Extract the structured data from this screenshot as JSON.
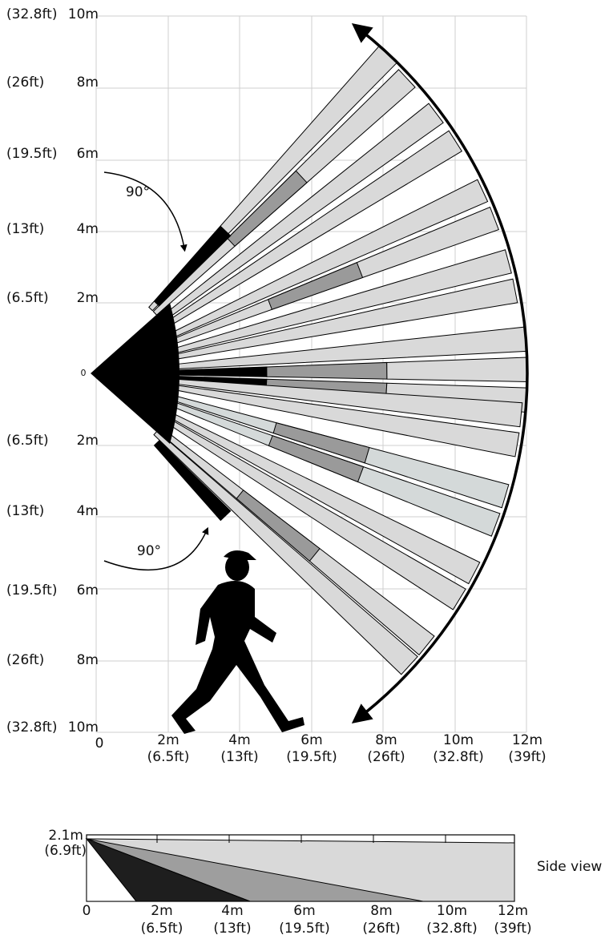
{
  "plan_view": {
    "y_labels_top": [
      {
        "ft": "(32.8ft)",
        "m": "10m"
      },
      {
        "ft": "(26ft)",
        "m": "8m"
      },
      {
        "ft": "(19.5ft)",
        "m": "6m"
      },
      {
        "ft": "(13ft)",
        "m": "4m"
      },
      {
        "ft": "(6.5ft)",
        "m": "2m"
      }
    ],
    "center_label": "0",
    "y_labels_bottom": [
      {
        "ft": "(6.5ft)",
        "m": "2m"
      },
      {
        "ft": "(13ft)",
        "m": "4m"
      },
      {
        "ft": "(19.5ft)",
        "m": "6m"
      },
      {
        "ft": "(26ft)",
        "m": "8m"
      },
      {
        "ft": "(32.8ft)",
        "m": "10m"
      }
    ],
    "x_origin": "0",
    "x_labels": [
      {
        "m": "2m",
        "ft": "(6.5ft)"
      },
      {
        "m": "4m",
        "ft": "(13ft)"
      },
      {
        "m": "6m",
        "ft": "(19.5ft)"
      },
      {
        "m": "8m",
        "ft": "(26ft)"
      },
      {
        "m": "10m",
        "ft": "(32.8ft)"
      },
      {
        "m": "12m",
        "ft": "(39ft)"
      }
    ],
    "angle_labels": [
      "90°",
      "90°"
    ]
  },
  "side_view": {
    "title": "Side view",
    "height_m": "2.1m",
    "height_ft": "(6.9ft)",
    "x_origin": "0",
    "x_labels": [
      {
        "m": "2m",
        "ft": "(6.5ft)"
      },
      {
        "m": "4m",
        "ft": "(13ft)"
      },
      {
        "m": "6m",
        "ft": "(19.5ft)"
      },
      {
        "m": "8m",
        "ft": "(26ft)"
      },
      {
        "m": "10m",
        "ft": "(32.8ft)"
      },
      {
        "m": "12m",
        "ft": "(39ft)"
      }
    ]
  }
}
